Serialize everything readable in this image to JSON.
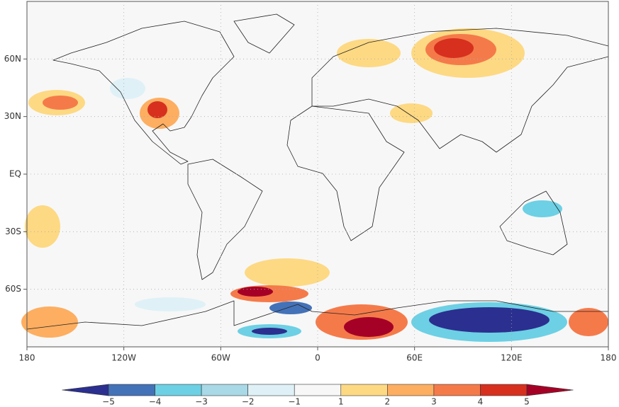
{
  "chart_data": {
    "type": "map",
    "xlim": [
      -180,
      180
    ],
    "ylim": [
      -90,
      90
    ],
    "xticks": [
      {
        "value": -180,
        "label": "180"
      },
      {
        "value": -120,
        "label": "120W"
      },
      {
        "value": -60,
        "label": "60W"
      },
      0,
      {
        "value": 60,
        "label": "60E"
      },
      {
        "value": 120,
        "label": "120E"
      },
      {
        "value": 180,
        "label": "180"
      }
    ],
    "yticks": [
      {
        "value": 60,
        "label": "60N"
      },
      {
        "value": 30,
        "label": "30N"
      },
      {
        "value": 0,
        "label": "EQ"
      },
      {
        "value": -30,
        "label": "30S"
      },
      {
        "value": -60,
        "label": "60S"
      }
    ],
    "grid": true,
    "colorbar": {
      "bounds": [
        {
          "value": -5,
          "label": "−5"
        },
        {
          "value": -4,
          "label": "−4"
        },
        {
          "value": -3,
          "label": "−3"
        },
        {
          "value": -2,
          "label": "−2"
        },
        {
          "value": -1,
          "label": "−1"
        },
        1,
        2,
        3,
        4,
        5
      ],
      "colors": [
        "#2b2f8f",
        "#4472b8",
        "#6dd0e4",
        "#a9d8e6",
        "#dff1f7",
        "#f7f7f7",
        "#fdd983",
        "#fdae61",
        "#f57a4a",
        "#d7301f",
        "#a50026"
      ]
    }
  }
}
